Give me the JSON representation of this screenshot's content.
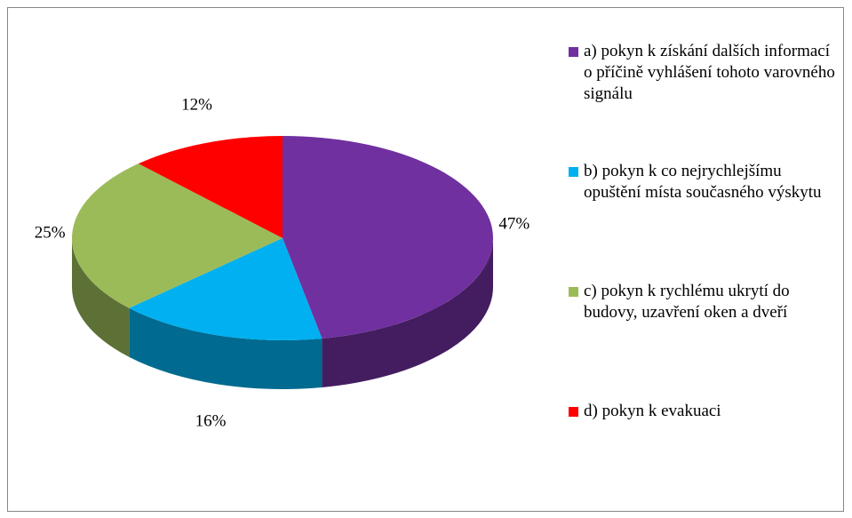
{
  "chart_data": {
    "type": "pie",
    "categories": [
      "a) pokyn k získání dalších informací o příčině vyhlášení tohoto varovného signálu",
      "b) pokyn k co nejrychlejšímu opuštění místa současného výskytu",
      "c) pokyn k rychlému ukrytí do budovy, uzavření oken a dveří",
      "d) pokyn k evakuaci"
    ],
    "values": [
      47,
      16,
      25,
      12
    ],
    "value_labels": [
      "47%",
      "16%",
      "25%",
      "12%"
    ],
    "colors": [
      "#7030a0",
      "#00b0f0",
      "#9bbb59",
      "#ff0000"
    ],
    "legend": "right"
  }
}
